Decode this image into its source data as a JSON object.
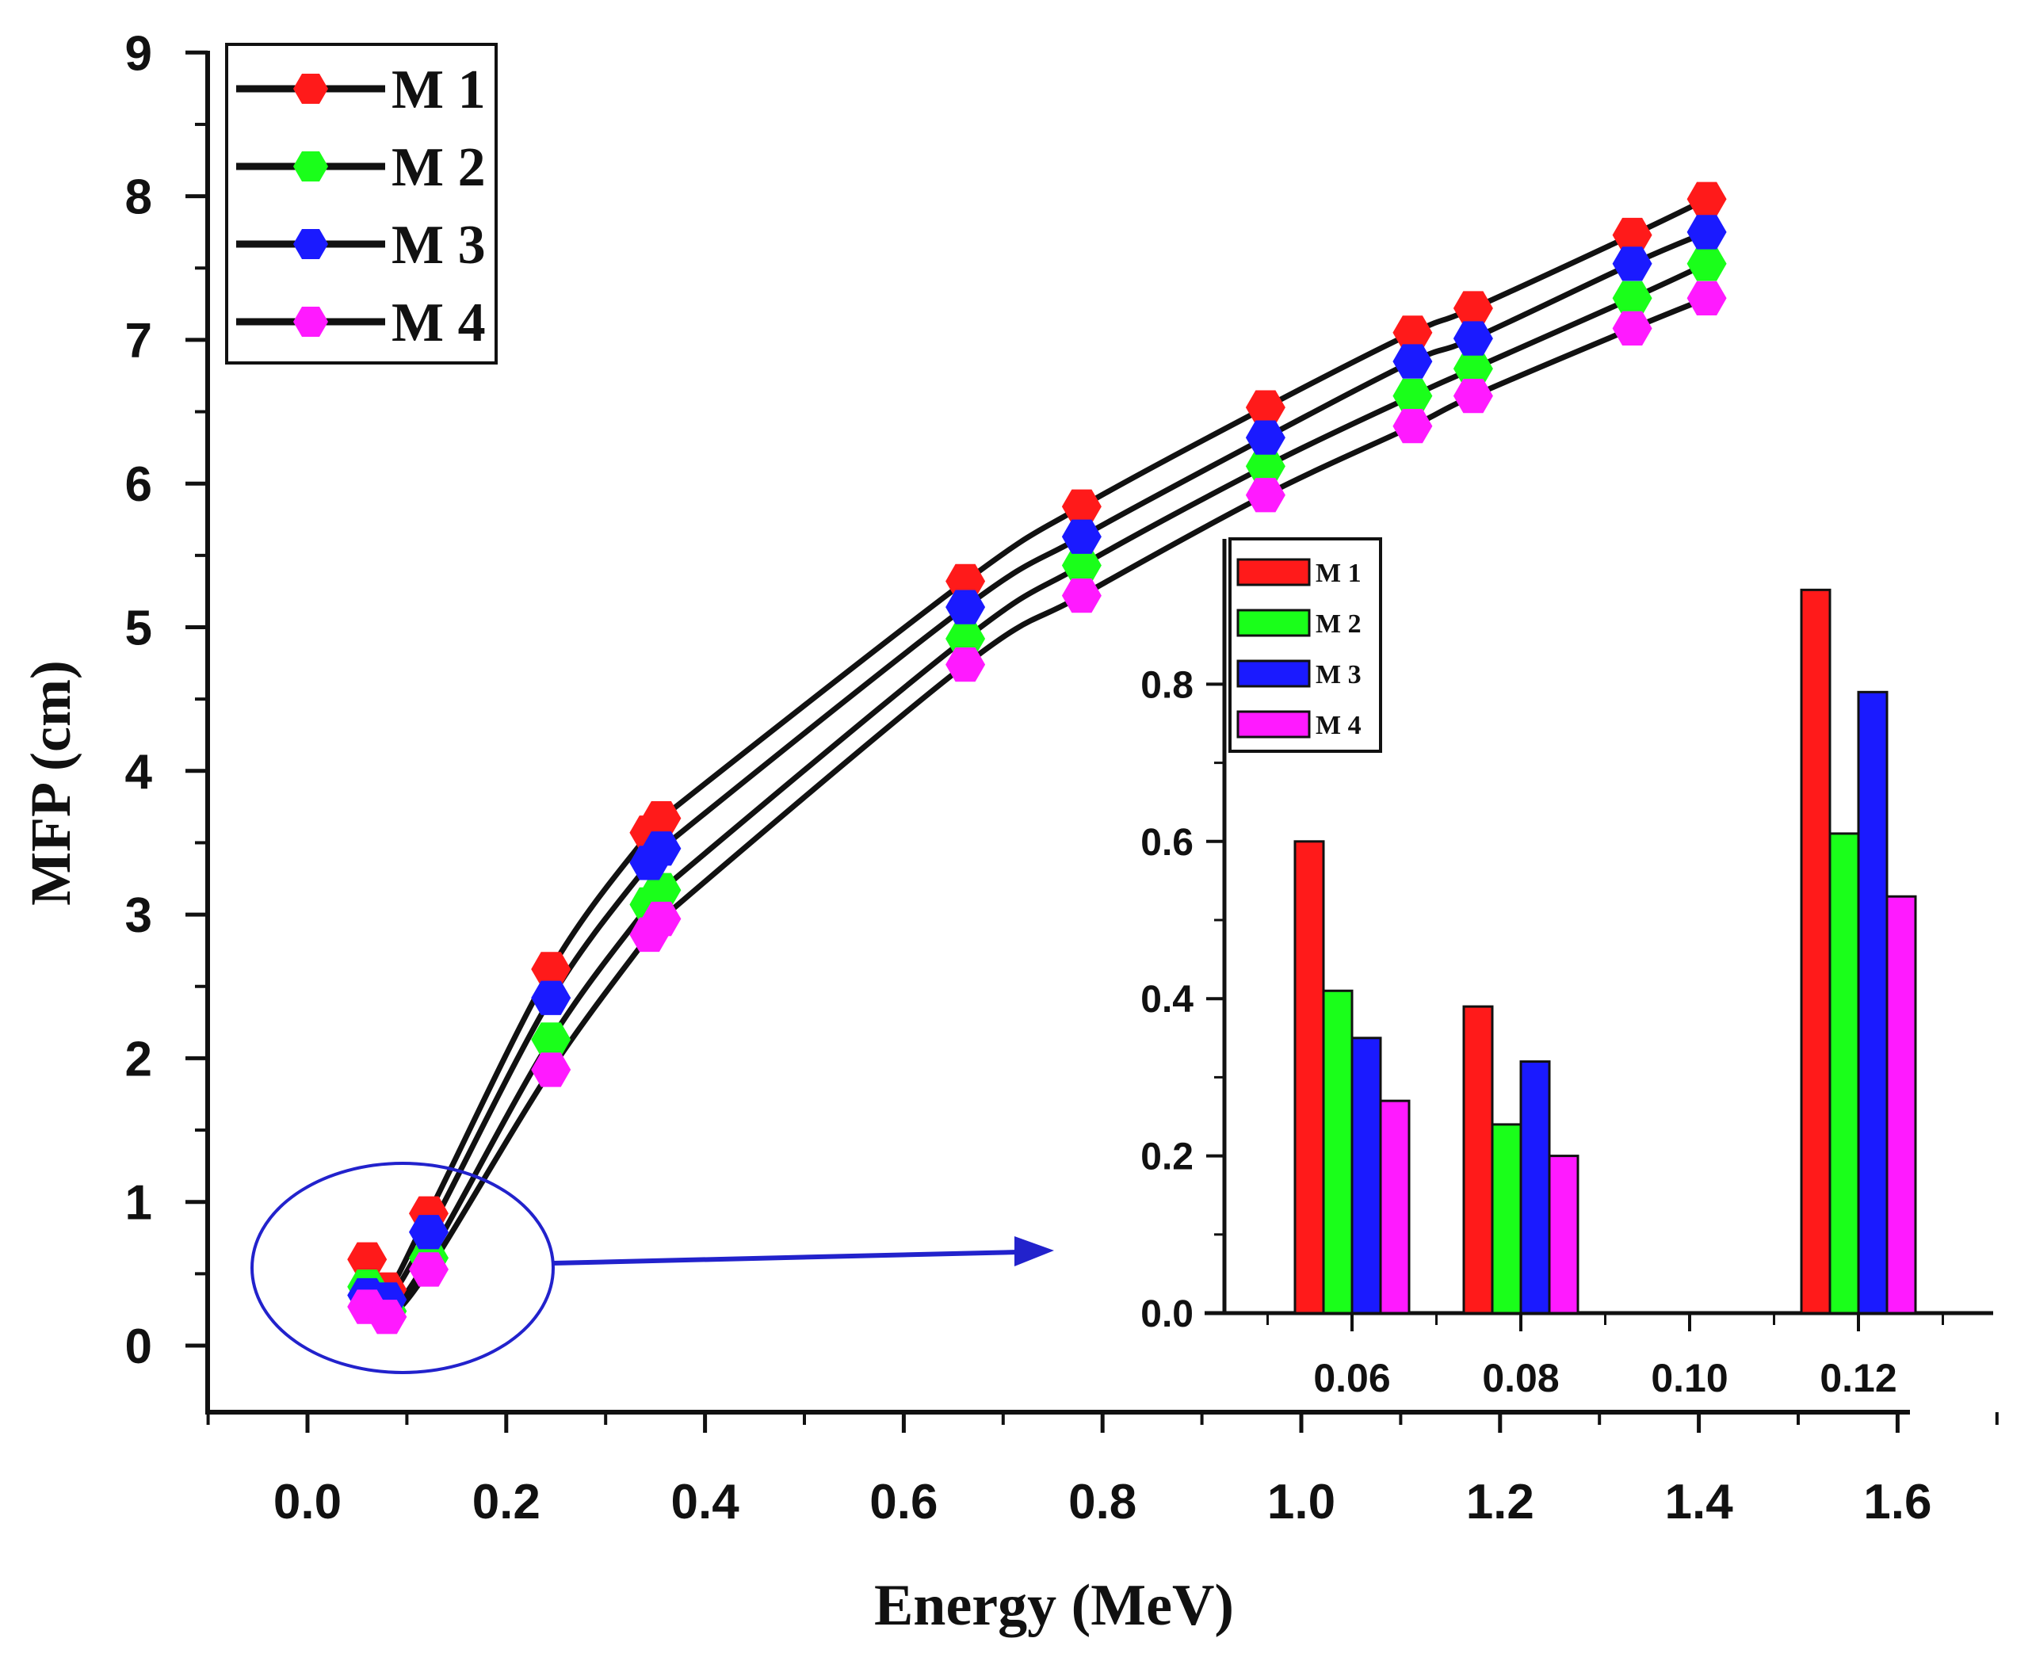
{
  "chart_data": [
    {
      "type": "line",
      "title": "",
      "xlabel": "Energy (MeV)",
      "ylabel": "MFP (cm)",
      "xlim": [
        -0.1,
        1.7
      ],
      "ylim": [
        -0.5,
        9.0
      ],
      "x_ticks": [
        "0.0",
        "0.2",
        "0.4",
        "0.6",
        "0.8",
        "1.0",
        "1.2",
        "1.4",
        "1.6"
      ],
      "y_ticks": [
        "0",
        "1",
        "2",
        "3",
        "4",
        "5",
        "6",
        "7",
        "8",
        "9"
      ],
      "grid": false,
      "legend_position": "top-left",
      "x": [
        0.06,
        0.08,
        0.122,
        0.245,
        0.344,
        0.356,
        0.662,
        0.779,
        0.964,
        1.112,
        1.173,
        1.333,
        1.408
      ],
      "series": [
        {
          "name": "M1",
          "color": "#ff1a1a",
          "values": [
            0.6,
            0.39,
            0.92,
            2.62,
            3.57,
            3.67,
            5.32,
            5.84,
            6.53,
            7.05,
            7.22,
            7.73,
            7.98
          ]
        },
        {
          "name": "M2",
          "color": "#1aff1a",
          "values": [
            0.41,
            0.24,
            0.61,
            2.13,
            3.07,
            3.17,
            4.92,
            5.43,
            6.12,
            6.61,
            6.8,
            7.29,
            7.53
          ]
        },
        {
          "name": "M3",
          "color": "#1a1aff",
          "values": [
            0.35,
            0.32,
            0.79,
            2.42,
            3.36,
            3.46,
            5.14,
            5.63,
            6.32,
            6.85,
            7.01,
            7.53,
            7.75
          ]
        },
        {
          "name": "M4",
          "color": "#ff1aff",
          "values": [
            0.27,
            0.2,
            0.53,
            1.92,
            2.86,
            2.97,
            4.74,
            5.22,
            5.92,
            6.4,
            6.61,
            7.08,
            7.29
          ]
        }
      ],
      "annotation": "circle around low-energy points with arrow pointing to inset"
    },
    {
      "type": "bar",
      "title": "",
      "xlabel": "",
      "ylabel": "",
      "categories": [
        "0.06",
        "0.08",
        "0.10",
        "0.12"
      ],
      "ylim": [
        0,
        0.92
      ],
      "y_ticks": [
        "0.0",
        "0.2",
        "0.4",
        "0.6",
        "0.8"
      ],
      "legend_position": "top-left",
      "series": [
        {
          "name": "M1",
          "color": "#ff1a1a",
          "values": [
            0.6,
            0.39,
            null,
            0.92
          ]
        },
        {
          "name": "M2",
          "color": "#1aff1a",
          "values": [
            0.41,
            0.24,
            null,
            0.61
          ]
        },
        {
          "name": "M3",
          "color": "#1a1aff",
          "values": [
            0.35,
            0.32,
            null,
            0.79
          ]
        },
        {
          "name": "M4",
          "color": "#ff1aff",
          "values": [
            0.27,
            0.2,
            null,
            0.53
          ]
        }
      ]
    }
  ],
  "legend": {
    "main": [
      "M 1",
      "M 2",
      "M 3",
      "M 4"
    ],
    "inset": [
      "M 1",
      "M 2",
      "M 3",
      "M 4"
    ]
  },
  "colors": {
    "axis": "#111111",
    "line": "#111111",
    "annotation": "#2222cc"
  }
}
